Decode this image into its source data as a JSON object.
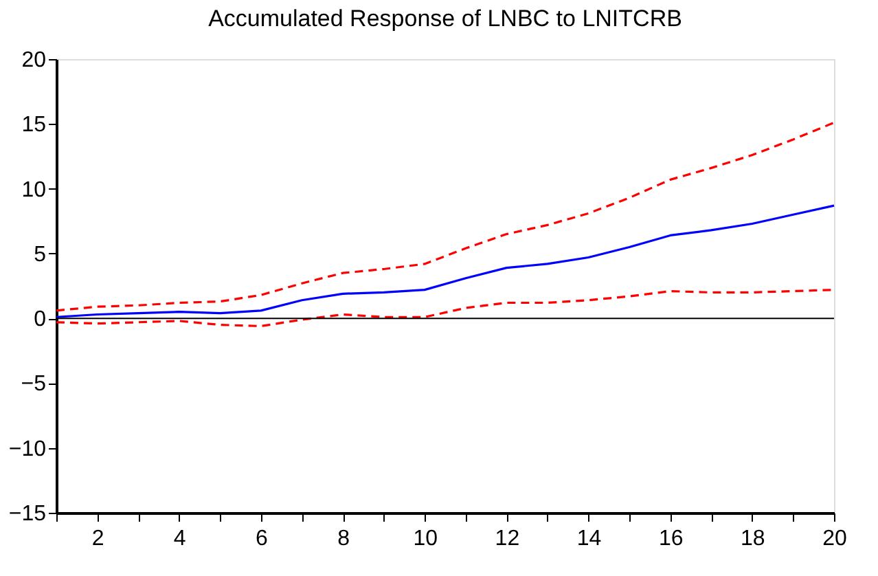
{
  "chart_data": {
    "type": "line",
    "title": "Accumulated Response of LNBC to LNITCRB",
    "x": [
      1,
      2,
      3,
      4,
      5,
      6,
      7,
      8,
      9,
      10,
      11,
      12,
      13,
      14,
      15,
      16,
      17,
      18,
      19,
      20
    ],
    "series": [
      {
        "color": "#0000ff",
        "line_style": "solid",
        "values": [
          0.1,
          0.3,
          0.4,
          0.5,
          0.4,
          0.6,
          1.4,
          1.9,
          2.0,
          2.2,
          3.1,
          3.9,
          4.2,
          4.7,
          5.5,
          6.4,
          6.8,
          7.3,
          8.0,
          8.7
        ]
      },
      {
        "color": "#ff0000",
        "line_style": "dashed",
        "values": [
          0.6,
          0.9,
          1.0,
          1.2,
          1.3,
          1.8,
          2.7,
          3.5,
          3.8,
          4.2,
          5.4,
          6.5,
          7.2,
          8.1,
          9.3,
          10.7,
          11.6,
          12.6,
          13.8,
          15.1
        ]
      },
      {
        "color": "#ff0000",
        "line_style": "dashed",
        "values": [
          -0.3,
          -0.4,
          -0.3,
          -0.2,
          -0.5,
          -0.6,
          -0.1,
          0.3,
          0.1,
          0.1,
          0.8,
          1.2,
          1.2,
          1.4,
          1.7,
          2.1,
          2.0,
          2.0,
          2.1,
          2.2
        ]
      }
    ],
    "xlim": [
      1,
      20
    ],
    "xticks": [
      {
        "value": 1,
        "label": null
      },
      2,
      {
        "value": 3,
        "label": null
      },
      4,
      {
        "value": 5,
        "label": null
      },
      6,
      {
        "value": 7,
        "label": null
      },
      8,
      {
        "value": 9,
        "label": null
      },
      10,
      {
        "value": 11,
        "label": null
      },
      12,
      {
        "value": 13,
        "label": null
      },
      14,
      {
        "value": 15,
        "label": null
      },
      16,
      {
        "value": 17,
        "label": null
      },
      18,
      {
        "value": 19,
        "label": null
      },
      20
    ],
    "ylim": [
      -15,
      20
    ],
    "yticks": [
      -15,
      -10,
      -5,
      0,
      5,
      10,
      15,
      20
    ],
    "ref_lines": [
      {
        "axis": "y",
        "value": 0,
        "color": "#000000",
        "line_style": "solid"
      }
    ],
    "grid": false,
    "legend": false
  }
}
